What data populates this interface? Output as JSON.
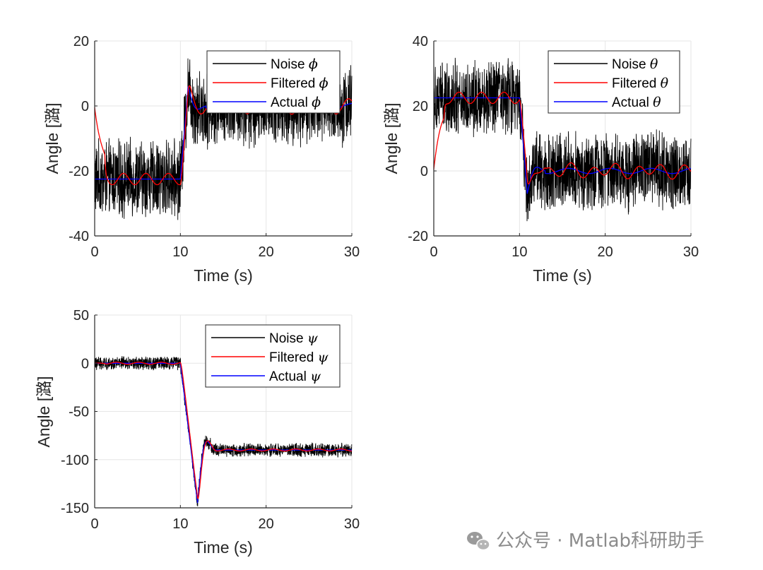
{
  "figure": {
    "watermark": "公众号 · Matlab科研助手"
  },
  "chart_data": [
    {
      "type": "line",
      "id": "phi",
      "xlabel": "Time (s)",
      "ylabel": "Angle [潞]",
      "xlim": [
        0,
        30
      ],
      "ylim": [
        -40,
        20
      ],
      "xticks": [
        "0",
        "10",
        "20",
        "30"
      ],
      "yticks": [
        "-40",
        "-20",
        "0",
        "20"
      ],
      "grid": true,
      "legend_position": "top-right",
      "step_time": 10,
      "before_value": -22.5,
      "after_value": 0,
      "overshoot_peak": 6,
      "settle_time": 13,
      "noise_amplitude": 10,
      "series": [
        {
          "name": "Noise",
          "symbol": "ϕ",
          "color": "#000000"
        },
        {
          "name": "Filtered",
          "symbol": "ϕ",
          "color": "#ff0000"
        },
        {
          "name": "Actual",
          "symbol": "ϕ",
          "color": "#0000ff"
        }
      ]
    },
    {
      "type": "line",
      "id": "theta",
      "xlabel": "Time (s)",
      "ylabel": "Angle [潞]",
      "xlim": [
        0,
        30
      ],
      "ylim": [
        -20,
        40
      ],
      "xticks": [
        "0",
        "10",
        "20",
        "30"
      ],
      "yticks": [
        "-20",
        "0",
        "20",
        "40"
      ],
      "grid": true,
      "legend_position": "top-right",
      "step_time": 10,
      "before_value": 22.5,
      "after_value": 0,
      "overshoot_peak": -7,
      "settle_time": 13,
      "noise_amplitude": 10,
      "series": [
        {
          "name": "Noise",
          "symbol": "θ",
          "color": "#000000"
        },
        {
          "name": "Filtered",
          "symbol": "θ",
          "color": "#ff0000"
        },
        {
          "name": "Actual",
          "symbol": "θ",
          "color": "#0000ff"
        }
      ]
    },
    {
      "type": "line",
      "id": "psi",
      "xlabel": "Time (s)",
      "ylabel": "Angle [潞]",
      "xlim": [
        0,
        30
      ],
      "ylim": [
        -150,
        50
      ],
      "xticks": [
        "0",
        "10",
        "20",
        "30"
      ],
      "yticks": [
        "-150",
        "-100",
        "-50",
        "0",
        "50"
      ],
      "grid": true,
      "legend_position": "top-right",
      "step_time": 10,
      "before_value": 0,
      "after_value": -90,
      "overshoot_peak": -145,
      "settle_time": 14,
      "noise_amplitude": 6,
      "series": [
        {
          "name": "Noise",
          "symbol": "ψ",
          "color": "#000000"
        },
        {
          "name": "Filtered",
          "symbol": "ψ",
          "color": "#ff0000"
        },
        {
          "name": "Actual",
          "symbol": "ψ",
          "color": "#0000ff"
        }
      ]
    }
  ]
}
